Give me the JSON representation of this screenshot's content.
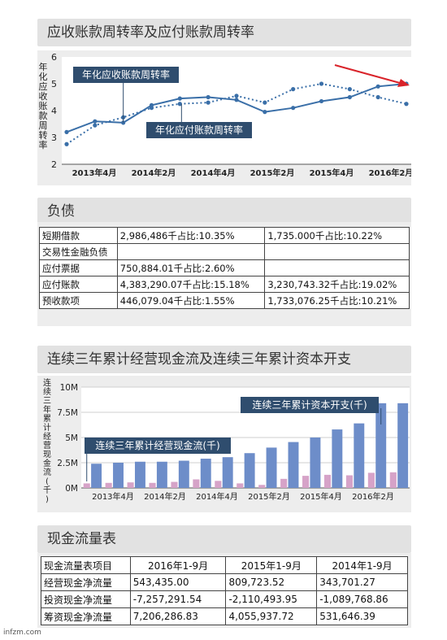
{
  "turnover": {
    "title": "应收账款周转率及应付账款周转率",
    "y_axis_label": "年化应收账款周转率",
    "chart_data": {
      "type": "line",
      "x_ticks": [
        "2013年4月",
        "2014年2月",
        "2014年4月",
        "2015年2月",
        "2015年4月",
        "2016年2月"
      ],
      "ylim": [
        2,
        6
      ],
      "y_ticks": [
        "2",
        "3",
        "4",
        "5",
        "6"
      ],
      "series": [
        {
          "name": "年化应收账款周转率",
          "style": "solid",
          "color": "#3a6fa8",
          "values": [
            3.2,
            3.6,
            3.55,
            4.2,
            4.45,
            4.5,
            4.4,
            3.95,
            4.1,
            4.35,
            4.5,
            4.9,
            5.0
          ]
        },
        {
          "name": "年化应付账款周转率",
          "style": "dotted",
          "color": "#3a6fa8",
          "values": [
            2.75,
            3.45,
            3.75,
            4.1,
            4.25,
            4.3,
            4.55,
            4.3,
            4.8,
            5.0,
            4.8,
            4.5,
            4.25
          ]
        }
      ],
      "arrow_color": "#d9232a"
    }
  },
  "debt": {
    "title": "负债",
    "rows": [
      [
        "短期借款",
        "2,986,486千占比:10.35%",
        "1,735.000千占比:10.22%"
      ],
      [
        "交易性金融负债",
        "",
        ""
      ],
      [
        "应付票据",
        "750,884.01千占比:2.60%",
        ""
      ],
      [
        "应付账款",
        "4,383,290.07千占比:15.18%",
        "3,230,743.32千占比:19.02%"
      ],
      [
        "预收款项",
        "446,079.04千占比:1.55%",
        "1,733,076.25千占比:10.21%"
      ]
    ]
  },
  "cashflow_chart": {
    "title": "连续三年累计经营现金流及连续三年累计资本开支",
    "y_axis_label": "连续三年累计经营现金流(千)",
    "chart_data": {
      "type": "bar",
      "x_ticks": [
        "2013年4月",
        "2014年2月",
        "2014年4月",
        "2015年2月",
        "2015年4月",
        "2016年2月"
      ],
      "ylim": [
        0,
        10
      ],
      "y_ticks": [
        "0M",
        "2.5M",
        "5M",
        "7.5M",
        "10M"
      ],
      "series": [
        {
          "name": "连续三年累计经营现金流(千)",
          "color": "#d6a3c8",
          "values": [
            0.45,
            0.5,
            0.55,
            0.5,
            0.6,
            0.85,
            0.7,
            0.45,
            0.3,
            0.9,
            1.2,
            1.3,
            1.25,
            1.5,
            1.55
          ]
        },
        {
          "name": "连续三年累计资本开支(千)",
          "color": "#6d8dc9",
          "values": [
            2.4,
            2.5,
            2.6,
            2.6,
            2.7,
            2.9,
            3.05,
            3.45,
            4.0,
            4.55,
            5.0,
            5.8,
            6.4,
            8.4,
            8.4
          ]
        }
      ]
    }
  },
  "cashflow_table": {
    "title": "现金流量表",
    "header": [
      "现金流量表项目",
      "2016年1-9月",
      "2015年1-9月",
      "2014年1-9月"
    ],
    "rows": [
      [
        "经营现金净流量",
        "543,435.00",
        "809,723.52",
        "343,701.27"
      ],
      [
        "投资现金净流量",
        "-7,257,291.54",
        "-2,110,493.95",
        "-1,089,768.86"
      ],
      [
        "筹资现金净流量",
        "7,206,286.83",
        "4,055,937.72",
        "531,646.39"
      ]
    ]
  },
  "watermark": "infzm.com"
}
